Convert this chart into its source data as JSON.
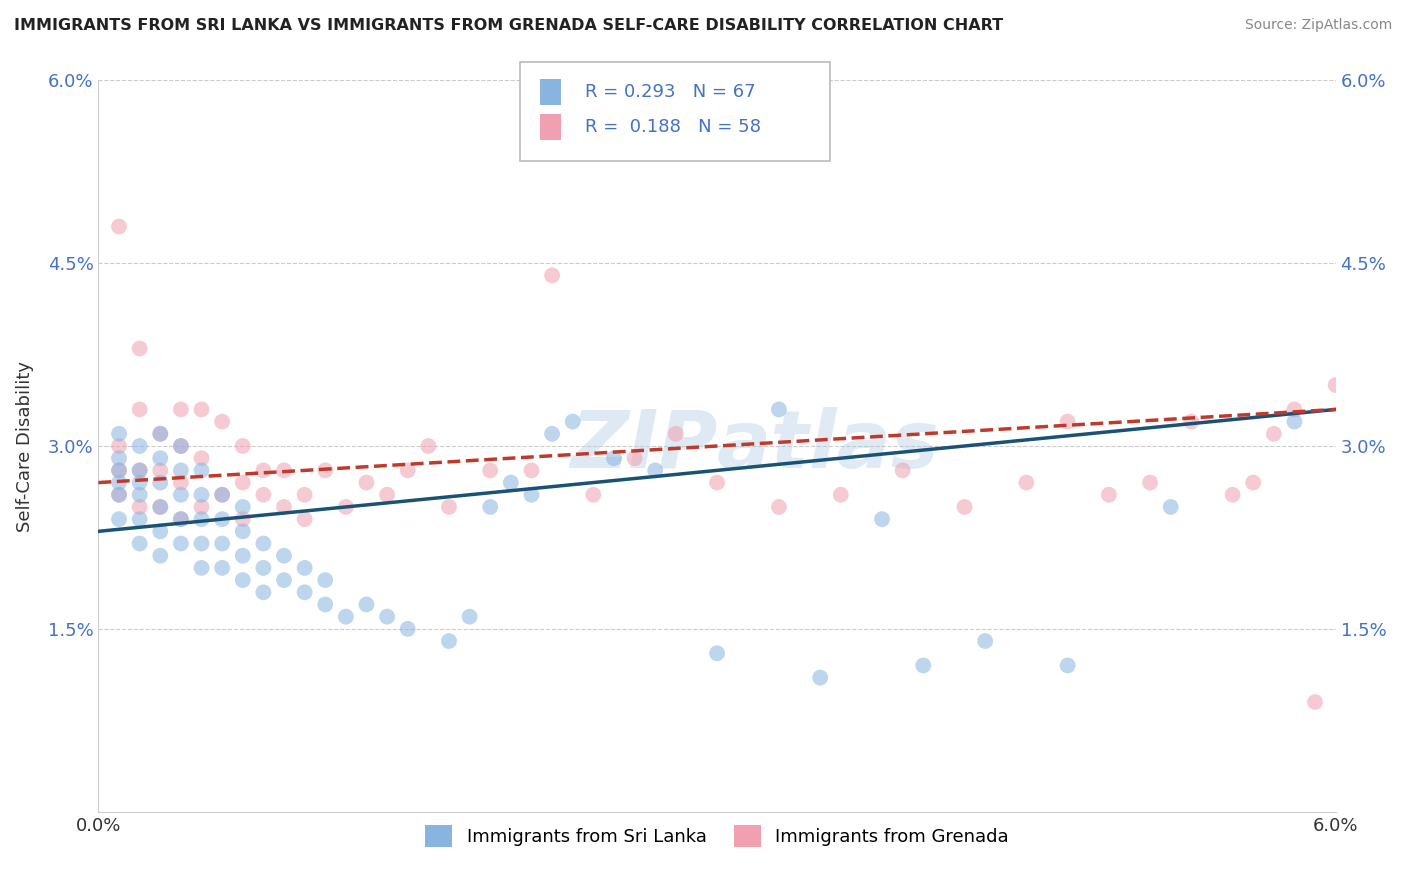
{
  "title": "IMMIGRANTS FROM SRI LANKA VS IMMIGRANTS FROM GRENADA SELF-CARE DISABILITY CORRELATION CHART",
  "source": "Source: ZipAtlas.com",
  "ylabel": "Self-Care Disability",
  "xlim": [
    0,
    0.06
  ],
  "ylim": [
    0,
    0.06
  ],
  "xticks": [
    0.0,
    0.01,
    0.02,
    0.03,
    0.04,
    0.05,
    0.06
  ],
  "yticks": [
    0.0,
    0.015,
    0.03,
    0.045,
    0.06
  ],
  "sri_lanka_R": 0.293,
  "sri_lanka_N": 67,
  "grenada_R": 0.188,
  "grenada_N": 58,
  "sri_lanka_color": "#8ab4e0",
  "grenada_color": "#f0a0b0",
  "sri_lanka_line_color": "#1a5276",
  "grenada_line_color": "#c0392b",
  "background_color": "#ffffff",
  "grid_color": "#cccccc",
  "watermark": "ZIPAtlas",
  "tick_color": "#4472c4",
  "sri_lanka_x": [
    0.001,
    0.001,
    0.001,
    0.001,
    0.001,
    0.001,
    0.002,
    0.002,
    0.002,
    0.002,
    0.002,
    0.002,
    0.003,
    0.003,
    0.003,
    0.003,
    0.003,
    0.003,
    0.004,
    0.004,
    0.004,
    0.004,
    0.004,
    0.005,
    0.005,
    0.005,
    0.005,
    0.005,
    0.006,
    0.006,
    0.006,
    0.006,
    0.007,
    0.007,
    0.007,
    0.007,
    0.008,
    0.008,
    0.008,
    0.009,
    0.009,
    0.01,
    0.01,
    0.011,
    0.011,
    0.012,
    0.013,
    0.014,
    0.015,
    0.017,
    0.018,
    0.019,
    0.02,
    0.021,
    0.022,
    0.023,
    0.025,
    0.027,
    0.03,
    0.033,
    0.035,
    0.038,
    0.04,
    0.043,
    0.047,
    0.052,
    0.058
  ],
  "sri_lanka_y": [
    0.024,
    0.026,
    0.027,
    0.028,
    0.029,
    0.031,
    0.022,
    0.024,
    0.026,
    0.027,
    0.028,
    0.03,
    0.021,
    0.023,
    0.025,
    0.027,
    0.029,
    0.031,
    0.022,
    0.024,
    0.026,
    0.028,
    0.03,
    0.02,
    0.022,
    0.024,
    0.026,
    0.028,
    0.02,
    0.022,
    0.024,
    0.026,
    0.019,
    0.021,
    0.023,
    0.025,
    0.018,
    0.02,
    0.022,
    0.019,
    0.021,
    0.018,
    0.02,
    0.017,
    0.019,
    0.016,
    0.017,
    0.016,
    0.015,
    0.014,
    0.016,
    0.025,
    0.027,
    0.026,
    0.031,
    0.032,
    0.029,
    0.028,
    0.013,
    0.033,
    0.011,
    0.024,
    0.012,
    0.014,
    0.012,
    0.025,
    0.032
  ],
  "grenada_x": [
    0.001,
    0.001,
    0.001,
    0.001,
    0.002,
    0.002,
    0.002,
    0.002,
    0.003,
    0.003,
    0.003,
    0.004,
    0.004,
    0.004,
    0.004,
    0.005,
    0.005,
    0.005,
    0.006,
    0.006,
    0.007,
    0.007,
    0.007,
    0.008,
    0.008,
    0.009,
    0.009,
    0.01,
    0.01,
    0.011,
    0.012,
    0.013,
    0.014,
    0.015,
    0.016,
    0.017,
    0.019,
    0.021,
    0.022,
    0.024,
    0.026,
    0.028,
    0.03,
    0.033,
    0.036,
    0.039,
    0.042,
    0.045,
    0.047,
    0.049,
    0.051,
    0.053,
    0.055,
    0.056,
    0.057,
    0.058,
    0.059,
    0.06
  ],
  "grenada_y": [
    0.026,
    0.028,
    0.03,
    0.048,
    0.025,
    0.028,
    0.033,
    0.038,
    0.025,
    0.028,
    0.031,
    0.024,
    0.027,
    0.03,
    0.033,
    0.025,
    0.029,
    0.033,
    0.026,
    0.032,
    0.024,
    0.027,
    0.03,
    0.026,
    0.028,
    0.025,
    0.028,
    0.024,
    0.026,
    0.028,
    0.025,
    0.027,
    0.026,
    0.028,
    0.03,
    0.025,
    0.028,
    0.028,
    0.044,
    0.026,
    0.029,
    0.031,
    0.027,
    0.025,
    0.026,
    0.028,
    0.025,
    0.027,
    0.032,
    0.026,
    0.027,
    0.032,
    0.026,
    0.027,
    0.031,
    0.033,
    0.009,
    0.035
  ]
}
